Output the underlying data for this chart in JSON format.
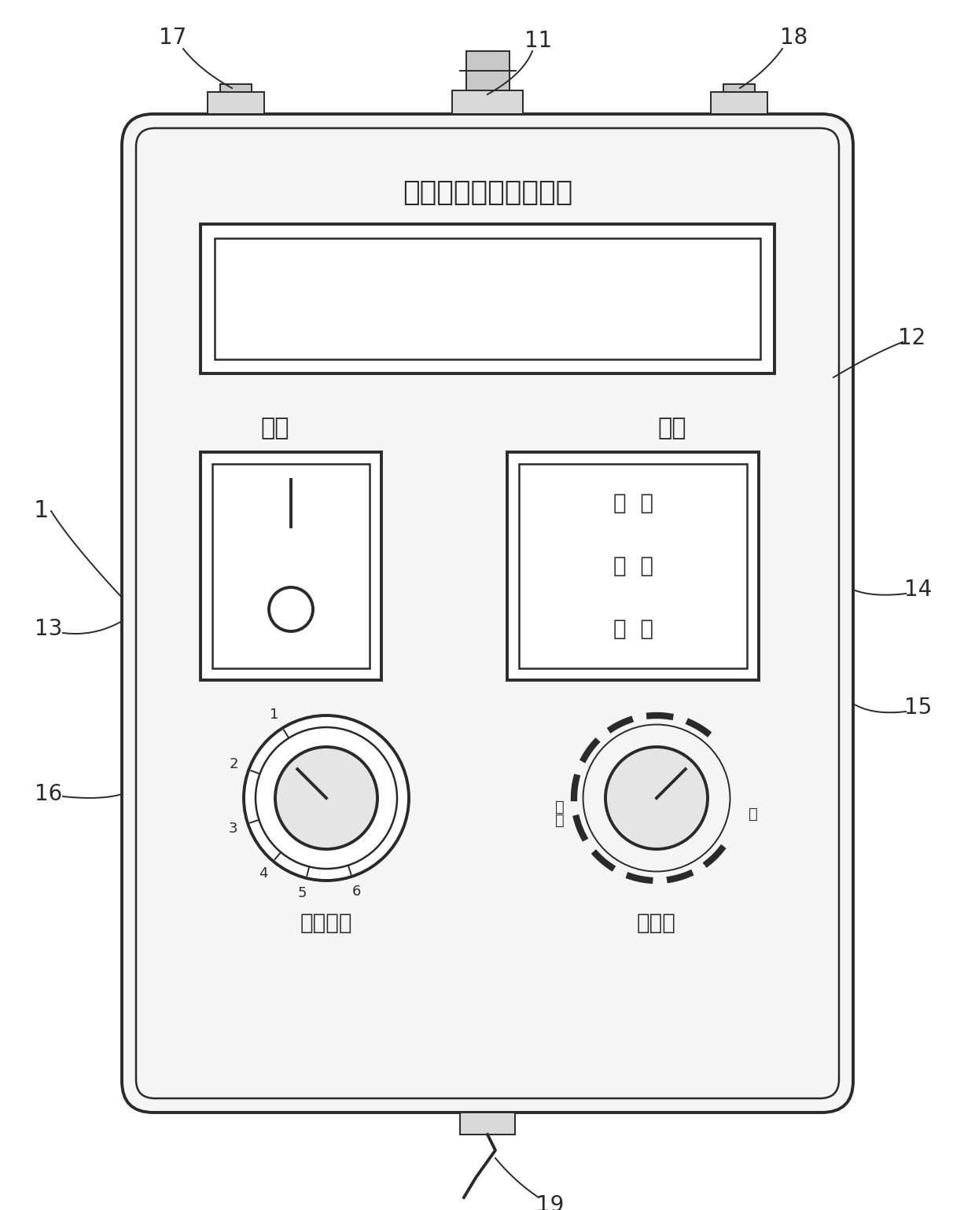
{
  "bg_color": "#ffffff",
  "lc": "#2a2a2a",
  "figw": 12.4,
  "figh": 15.39,
  "dpi": 100,
  "title_text": "电动汽车故障检测仪表",
  "label_dianxuo": "电锁",
  "label_danwei": "档位",
  "label_jiance": "检测转换",
  "label_tiaosus": "调速器",
  "gear_lines": [
    "前  进",
    "停  止",
    "后  退"
  ],
  "knob1_labels": [
    "1",
    "2",
    "3",
    "4",
    "5",
    "6"
  ],
  "note_labels": [
    "1",
    "11",
    "17",
    "18",
    "12",
    "13",
    "14",
    "15",
    "16",
    "19"
  ]
}
